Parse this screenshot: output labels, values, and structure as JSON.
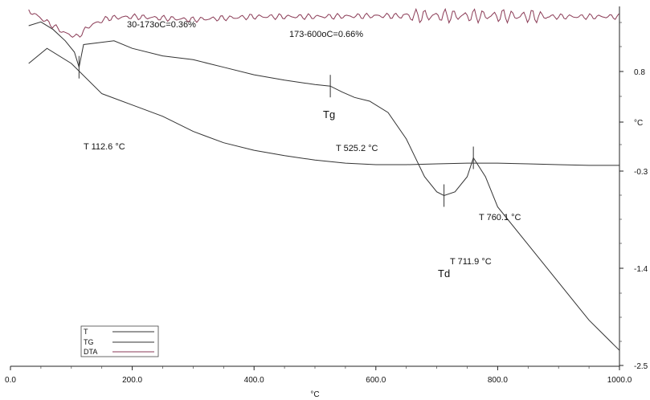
{
  "chart_data": {
    "type": "line",
    "title": "",
    "xlabel": "°C",
    "x_range": [
      0,
      1000
    ],
    "x_ticks": [
      "0.0",
      "200.0",
      "400.0",
      "600.0",
      "800.0",
      "1000.0"
    ],
    "x_tick_values": [
      0,
      200,
      400,
      600,
      800,
      1000
    ],
    "right_axis_ticks": [
      "0.8",
      "°C",
      "-0.3",
      "-1.4",
      "-2.5"
    ],
    "grid": false,
    "legend_position": "bottom-left",
    "legend": [
      "T",
      "TG",
      "DTA"
    ],
    "annotations": {
      "mass_loss_1": "30-173oC=0.36%",
      "mass_loss_2": "173-600oC=0.66%",
      "tg_label": "Tg",
      "td_label": "Td",
      "t1": "T 112.6 °C",
      "t2": "T 525.2 °C",
      "t3": "T 711.9 °C",
      "t4": "T 760.1 °C"
    },
    "markers": [
      {
        "x": 112.6,
        "label": "T 112.6 °C"
      },
      {
        "x": 525.2,
        "label": "T 525.2 °C"
      },
      {
        "x": 711.9,
        "label": "T 711.9 °C"
      },
      {
        "x": 760.1,
        "label": "T 760.1 °C"
      }
    ],
    "series": [
      {
        "name": "TG",
        "color": "#333333",
        "x": [
          30,
          60,
          100,
          150,
          200,
          250,
          300,
          350,
          400,
          450,
          500,
          550,
          600,
          650,
          700,
          750,
          800,
          850,
          900,
          950,
          1000
        ],
        "y": [
          2.0,
          2.2,
          2.0,
          1.6,
          1.45,
          1.3,
          1.1,
          0.95,
          0.85,
          0.78,
          0.72,
          0.68,
          0.66,
          0.66,
          0.67,
          0.68,
          0.68,
          0.67,
          0.66,
          0.65,
          0.65
        ]
      },
      {
        "name": "T",
        "color": "#333333",
        "x": [
          30,
          50,
          70,
          90,
          105,
          112.6,
          120,
          170,
          200,
          250,
          300,
          350,
          400,
          450,
          500,
          525.2,
          545,
          565,
          590,
          620,
          650,
          680,
          700,
          711.9,
          730,
          750,
          760.1,
          780,
          800,
          850,
          900,
          950,
          1000
        ],
        "y": [
          2.5,
          2.55,
          2.45,
          2.3,
          2.15,
          1.95,
          2.25,
          2.3,
          2.2,
          2.1,
          2.05,
          1.95,
          1.85,
          1.78,
          1.72,
          1.7,
          1.62,
          1.55,
          1.5,
          1.35,
          1.0,
          0.5,
          0.3,
          0.25,
          0.3,
          0.5,
          0.75,
          0.5,
          0.1,
          -0.4,
          -0.9,
          -1.4,
          -1.8
        ]
      },
      {
        "name": "DTA",
        "color": "#8a3a55",
        "x": [
          30,
          60,
          90,
          110,
          130,
          160,
          200,
          250,
          300,
          400,
          500,
          600,
          700,
          800,
          900,
          1000
        ],
        "y": [
          2.7,
          2.55,
          2.4,
          2.35,
          2.5,
          2.6,
          2.62,
          2.6,
          2.58,
          2.62,
          2.62,
          2.63,
          2.63,
          2.63,
          2.62,
          2.62
        ]
      }
    ]
  }
}
